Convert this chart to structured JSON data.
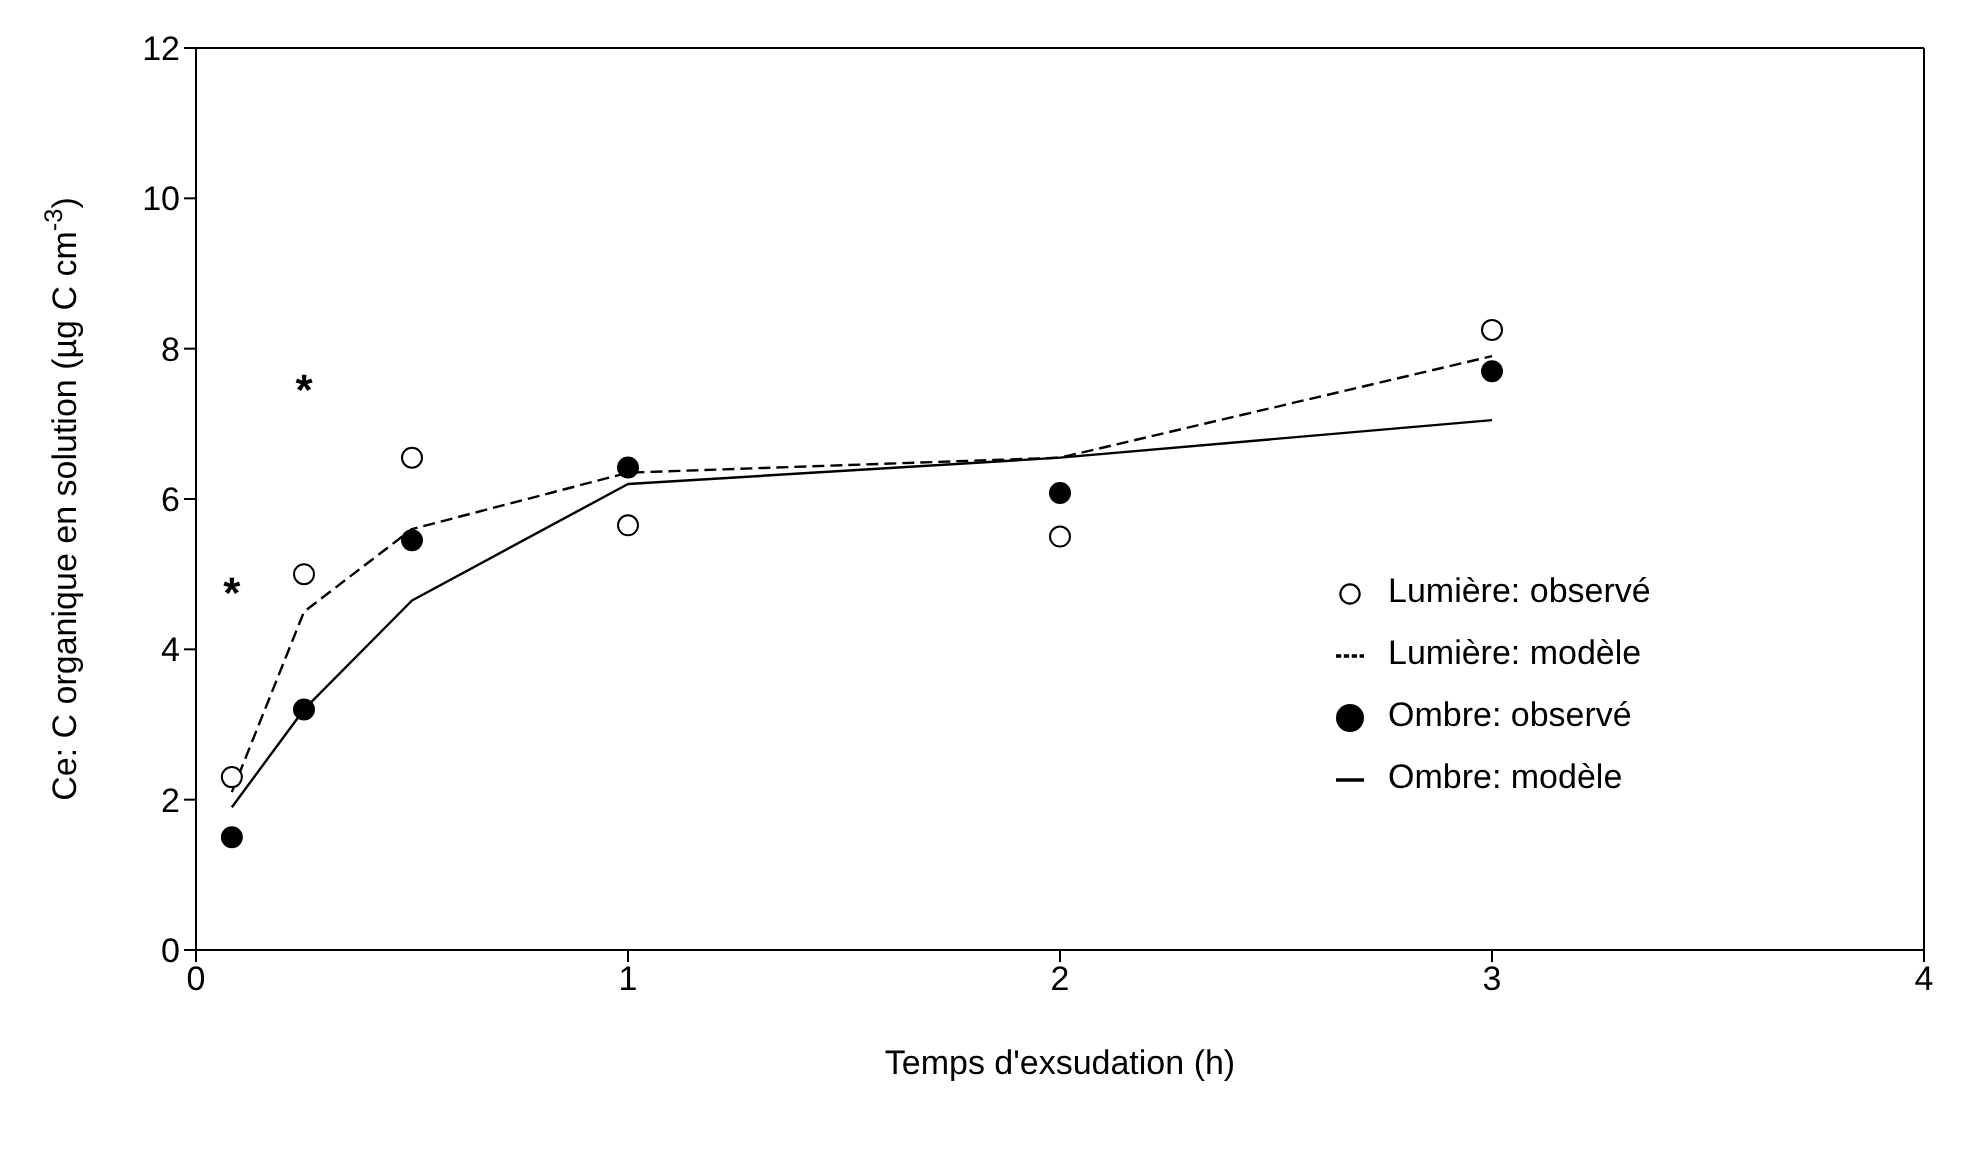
{
  "chart_data": {
    "type": "scatter",
    "xlabel": "Temps d'exsudation (h)",
    "ylabel": "Ce: C organique en solution (µg C cm$^{-3}$)",
    "xlim": [
      0,
      4
    ],
    "xticks": [
      0,
      1,
      2,
      3,
      4
    ],
    "ylim": [
      0,
      12
    ],
    "yticks": [
      0,
      2,
      4,
      6,
      8,
      10,
      12
    ],
    "legend": "right",
    "series": [
      {
        "name": "Lumière: observé",
        "marker": "circle",
        "color": "#ffffff",
        "x": [
          0.083,
          0.25,
          0.5,
          1,
          2,
          3
        ],
        "values": [
          2.3,
          5.0,
          6.55,
          5.65,
          5.5,
          8.25
        ]
      },
      {
        "name": "Lumière: modèle",
        "type": "line",
        "line_style": "dashed",
        "color": "#000000",
        "x": [
          0.083,
          0.25,
          0.5,
          1,
          2,
          3
        ],
        "values": [
          2.1,
          4.5,
          5.6,
          6.35,
          6.55,
          7.9
        ]
      },
      {
        "name": "Ombre: observé",
        "marker": "circle",
        "color": "#000000",
        "x": [
          0.083,
          0.25,
          0.5,
          1,
          2,
          3
        ],
        "values": [
          1.5,
          3.2,
          5.45,
          6.42,
          6.08,
          7.7
        ]
      },
      {
        "name": "Ombre: modèle",
        "type": "line",
        "line_style": "solid",
        "color": "#000000",
        "x": [
          0.083,
          0.25,
          0.5,
          1,
          2,
          3
        ],
        "values": [
          1.9,
          3.2,
          4.65,
          6.2,
          6.55,
          7.05
        ]
      }
    ],
    "annotations": [
      "*",
      "*"
    ]
  }
}
